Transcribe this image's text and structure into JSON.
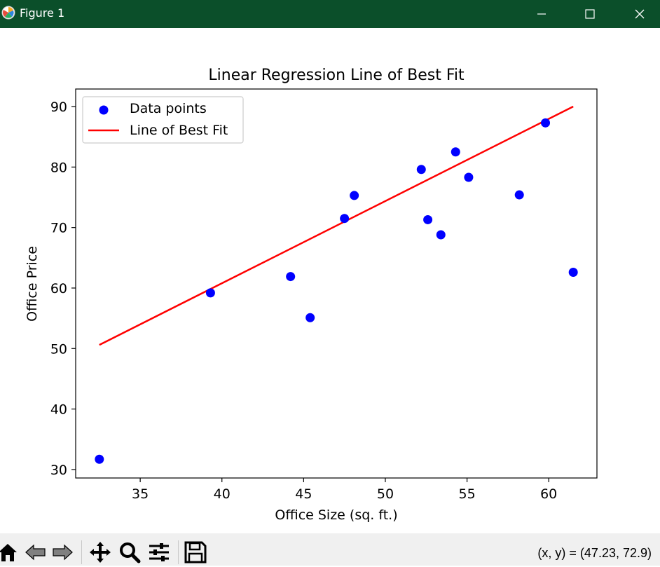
{
  "window": {
    "title": "Figure 1",
    "titlebar_color": "#0b4f2a",
    "buttons": [
      "minimize-icon",
      "maximize-icon",
      "close-icon"
    ]
  },
  "toolbar": {
    "buttons": [
      "home-icon",
      "back-icon",
      "forward-icon",
      "pan-icon",
      "zoom-icon",
      "configure-subplots-icon",
      "save-icon"
    ],
    "coords_text": "(x, y) = (47.23, 72.9)"
  },
  "chart_data": {
    "type": "scatter",
    "title": "Linear Regression Line of Best Fit",
    "xlabel": "Office Size (sq. ft.)",
    "ylabel": "Office Price",
    "xlim": [
      31.05,
      62.95
    ],
    "ylim": [
      28.6,
      92.9
    ],
    "xticks": [
      35,
      40,
      45,
      50,
      55,
      60
    ],
    "yticks": [
      30,
      40,
      50,
      60,
      70,
      80,
      90
    ],
    "legend_location": "upper left",
    "series": [
      {
        "name": "Data points",
        "kind": "scatter",
        "color": "#0000ff",
        "points": [
          [
            32.5,
            31.7
          ],
          [
            39.3,
            59.2
          ],
          [
            44.2,
            61.9
          ],
          [
            45.4,
            55.1
          ],
          [
            47.5,
            71.5
          ],
          [
            48.1,
            75.3
          ],
          [
            52.2,
            79.6
          ],
          [
            52.6,
            71.3
          ],
          [
            53.4,
            68.8
          ],
          [
            54.3,
            82.5
          ],
          [
            55.1,
            78.3
          ],
          [
            58.2,
            75.4
          ],
          [
            59.8,
            87.3
          ],
          [
            61.5,
            62.6
          ]
        ]
      },
      {
        "name": "Line of Best Fit",
        "kind": "line",
        "color": "#ff0000",
        "points": [
          [
            32.5,
            50.6
          ],
          [
            61.5,
            90.0
          ]
        ]
      }
    ]
  }
}
